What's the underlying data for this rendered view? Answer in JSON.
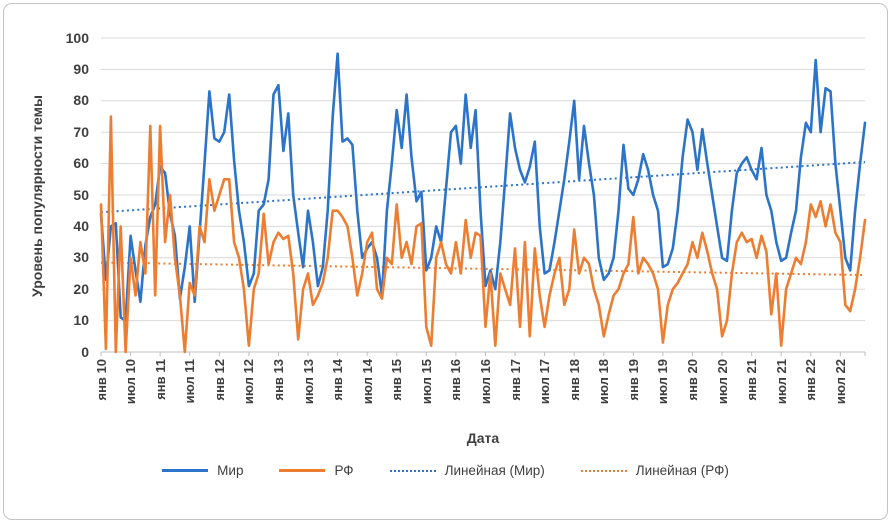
{
  "window": {
    "background": "#ffffff",
    "border_color": "#c3c3c3"
  },
  "colors": {
    "grid": "#d9d9d9",
    "axis": "#bfbfbf",
    "text": "#3f3f3f"
  },
  "chart_data": {
    "type": "line",
    "title": "",
    "xlabel": "Дата",
    "ylabel": "Уровень популярности темы",
    "ylim": [
      0,
      100
    ],
    "y_ticks": [
      0,
      10,
      20,
      30,
      40,
      50,
      60,
      70,
      80,
      90,
      100
    ],
    "grid": "horizontal",
    "legend_position": "bottom",
    "months_total": 156,
    "x_range_note": "monthly data Jan 2010 - Dec 2022",
    "x_tick_labels": [
      "янв 10",
      "июл 10",
      "янв 11",
      "июл 11",
      "янв 12",
      "июл 12",
      "янв 13",
      "июл 13",
      "янв 14",
      "июл 14",
      "янв 15",
      "июл 15",
      "янв 16",
      "июл 16",
      "янв 17",
      "июл 17",
      "янв 18",
      "июл 18",
      "янв 19",
      "июл 19",
      "янв 20",
      "июл 20",
      "янв 21",
      "июл 21",
      "янв 22",
      "июл 22"
    ],
    "x_tick_month_indices": [
      0,
      6,
      12,
      18,
      24,
      30,
      36,
      42,
      48,
      54,
      60,
      66,
      72,
      78,
      84,
      90,
      96,
      102,
      108,
      114,
      120,
      126,
      132,
      138,
      144,
      150
    ],
    "series": [
      {
        "name": "Мир",
        "color": "#2b74c9",
        "values": [
          44,
          23,
          40,
          41,
          11,
          10,
          37,
          26,
          16,
          34,
          43,
          47,
          59,
          57,
          44,
          37,
          17,
          27,
          40,
          16,
          38,
          60,
          83,
          68,
          67,
          70,
          82,
          61,
          45,
          35,
          21,
          25,
          45,
          47,
          55,
          82,
          85,
          64,
          76,
          50,
          38,
          27,
          45,
          35,
          21,
          27,
          45,
          75,
          95,
          67,
          68,
          66,
          45,
          30,
          33,
          35,
          30,
          18,
          45,
          60,
          77,
          65,
          82,
          62,
          48,
          51,
          26,
          30,
          40,
          35,
          52,
          70,
          72,
          60,
          82,
          65,
          77,
          45,
          21,
          26,
          20,
          35,
          55,
          76,
          65,
          58,
          54,
          59,
          67,
          40,
          25,
          26,
          35,
          45,
          55,
          67,
          80,
          55,
          72,
          60,
          50,
          30,
          23,
          25,
          30,
          45,
          66,
          52,
          50,
          55,
          63,
          58,
          50,
          45,
          27,
          28,
          33,
          45,
          62,
          74,
          70,
          58,
          71,
          60,
          50,
          40,
          30,
          29,
          45,
          57,
          60,
          62,
          58,
          55,
          65,
          50,
          45,
          35,
          29,
          30,
          38,
          45,
          62,
          73,
          70,
          93,
          70,
          84,
          83,
          60,
          45,
          30,
          26,
          45,
          60,
          73
        ]
      },
      {
        "name": "РФ",
        "color": "#ed7d31",
        "values": [
          47,
          1,
          75,
          0,
          40,
          0,
          30,
          18,
          35,
          25,
          72,
          18,
          72,
          35,
          50,
          30,
          18,
          0,
          22,
          18,
          40,
          35,
          55,
          45,
          50,
          55,
          55,
          35,
          30,
          20,
          2,
          20,
          25,
          44,
          28,
          35,
          38,
          36,
          37,
          25,
          4,
          20,
          25,
          15,
          18,
          22,
          30,
          45,
          45,
          43,
          40,
          30,
          18,
          25,
          35,
          38,
          20,
          17,
          30,
          28,
          47,
          30,
          35,
          28,
          40,
          41,
          8,
          2,
          30,
          35,
          28,
          25,
          35,
          25,
          42,
          30,
          38,
          37,
          8,
          25,
          2,
          25,
          20,
          15,
          33,
          8,
          35,
          5,
          33,
          18,
          8,
          18,
          25,
          30,
          15,
          20,
          39,
          25,
          30,
          28,
          20,
          15,
          5,
          12,
          18,
          20,
          25,
          28,
          43,
          25,
          30,
          28,
          25,
          20,
          3,
          15,
          20,
          22,
          25,
          28,
          35,
          30,
          38,
          32,
          25,
          20,
          5,
          10,
          25,
          35,
          38,
          35,
          36,
          30,
          37,
          32,
          12,
          25,
          2,
          20,
          25,
          30,
          28,
          35,
          47,
          43,
          48,
          40,
          47,
          38,
          35,
          15,
          13,
          20,
          30,
          42
        ]
      }
    ],
    "trendlines": [
      {
        "name": "Линейная (Мир)",
        "color": "#2b74c9",
        "start": 44.5,
        "end": 60.5
      },
      {
        "name": "Линейная (РФ)",
        "color": "#ed7d31",
        "start": 28.5,
        "end": 24.5
      }
    ]
  }
}
